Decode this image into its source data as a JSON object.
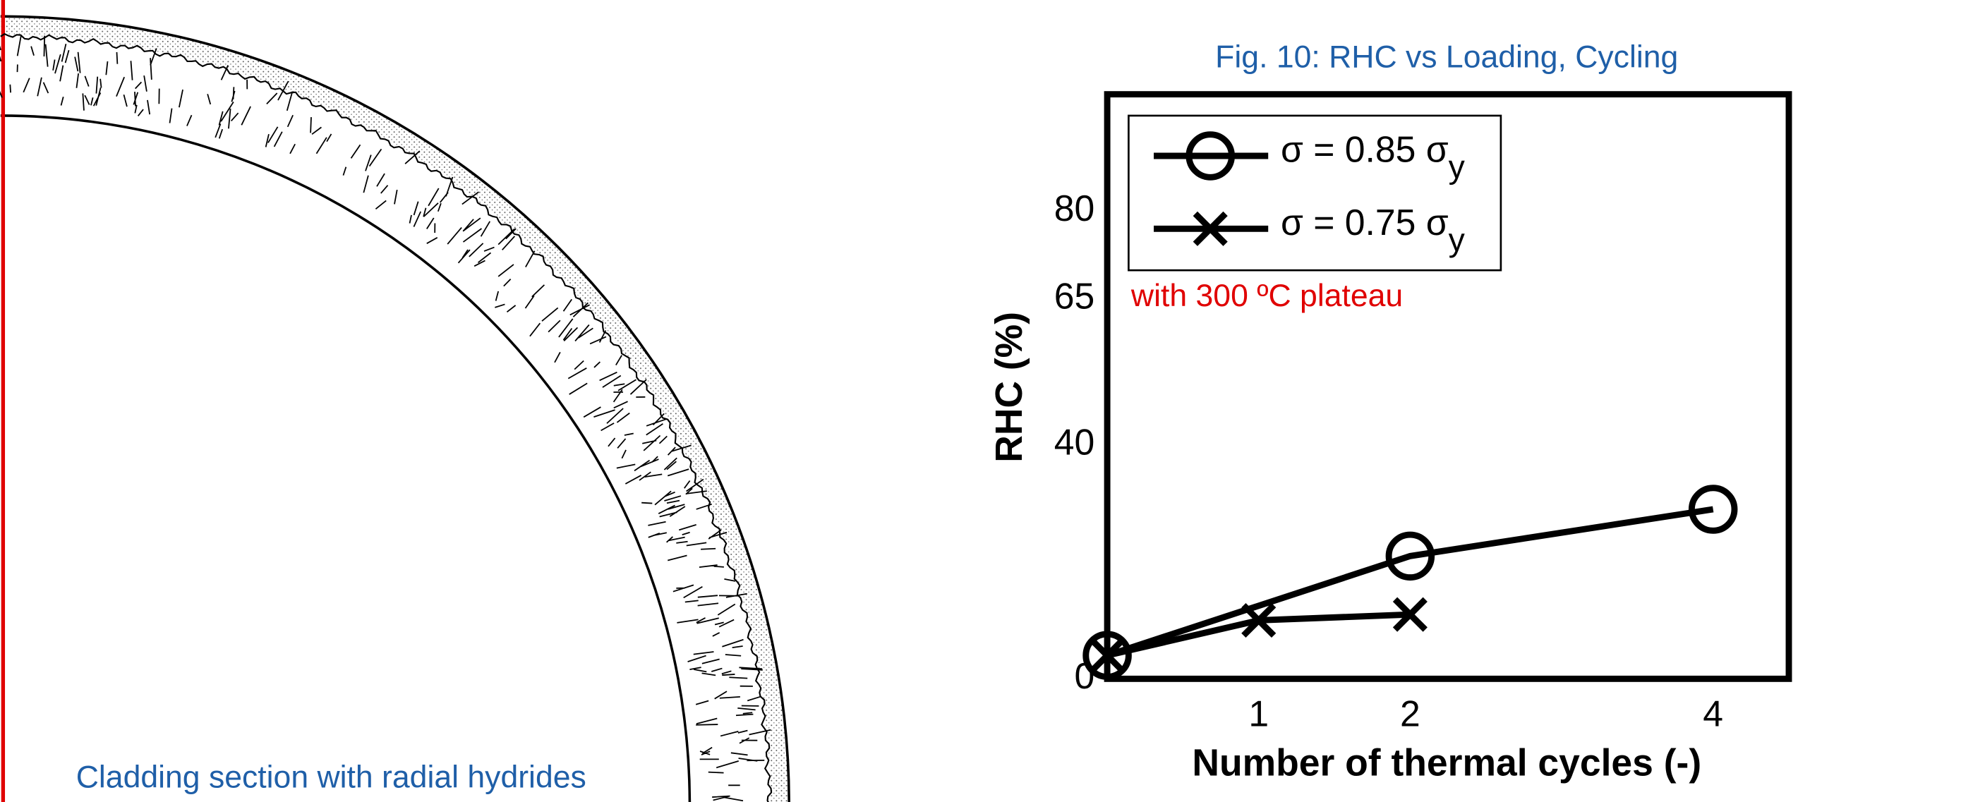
{
  "caption": "Cladding section with radial hydrides",
  "chart_data": {
    "type": "line",
    "title": "Fig. 10: RHC vs Loading, Cycling",
    "xlabel": "Number of thermal cycles (-)",
    "ylabel": "RHC (%)",
    "annotation": "with 300 ºC plateau",
    "xlim": [
      0,
      4.5
    ],
    "xticks": [
      1,
      2,
      4
    ],
    "ylim": [
      0,
      100
    ],
    "yticks": [
      0,
      40,
      65,
      80
    ],
    "legend": "upper left",
    "series": [
      {
        "name": "σ = 0.85 σy",
        "color": "#000000",
        "marker": "circle",
        "x": [
          0,
          2,
          4
        ],
        "values": [
          4,
          21,
          29
        ]
      },
      {
        "name": "σ = 0.75 σy",
        "color": "#000000",
        "marker": "x",
        "x": [
          0,
          1,
          2
        ],
        "values": [
          4,
          10,
          11
        ]
      }
    ]
  }
}
